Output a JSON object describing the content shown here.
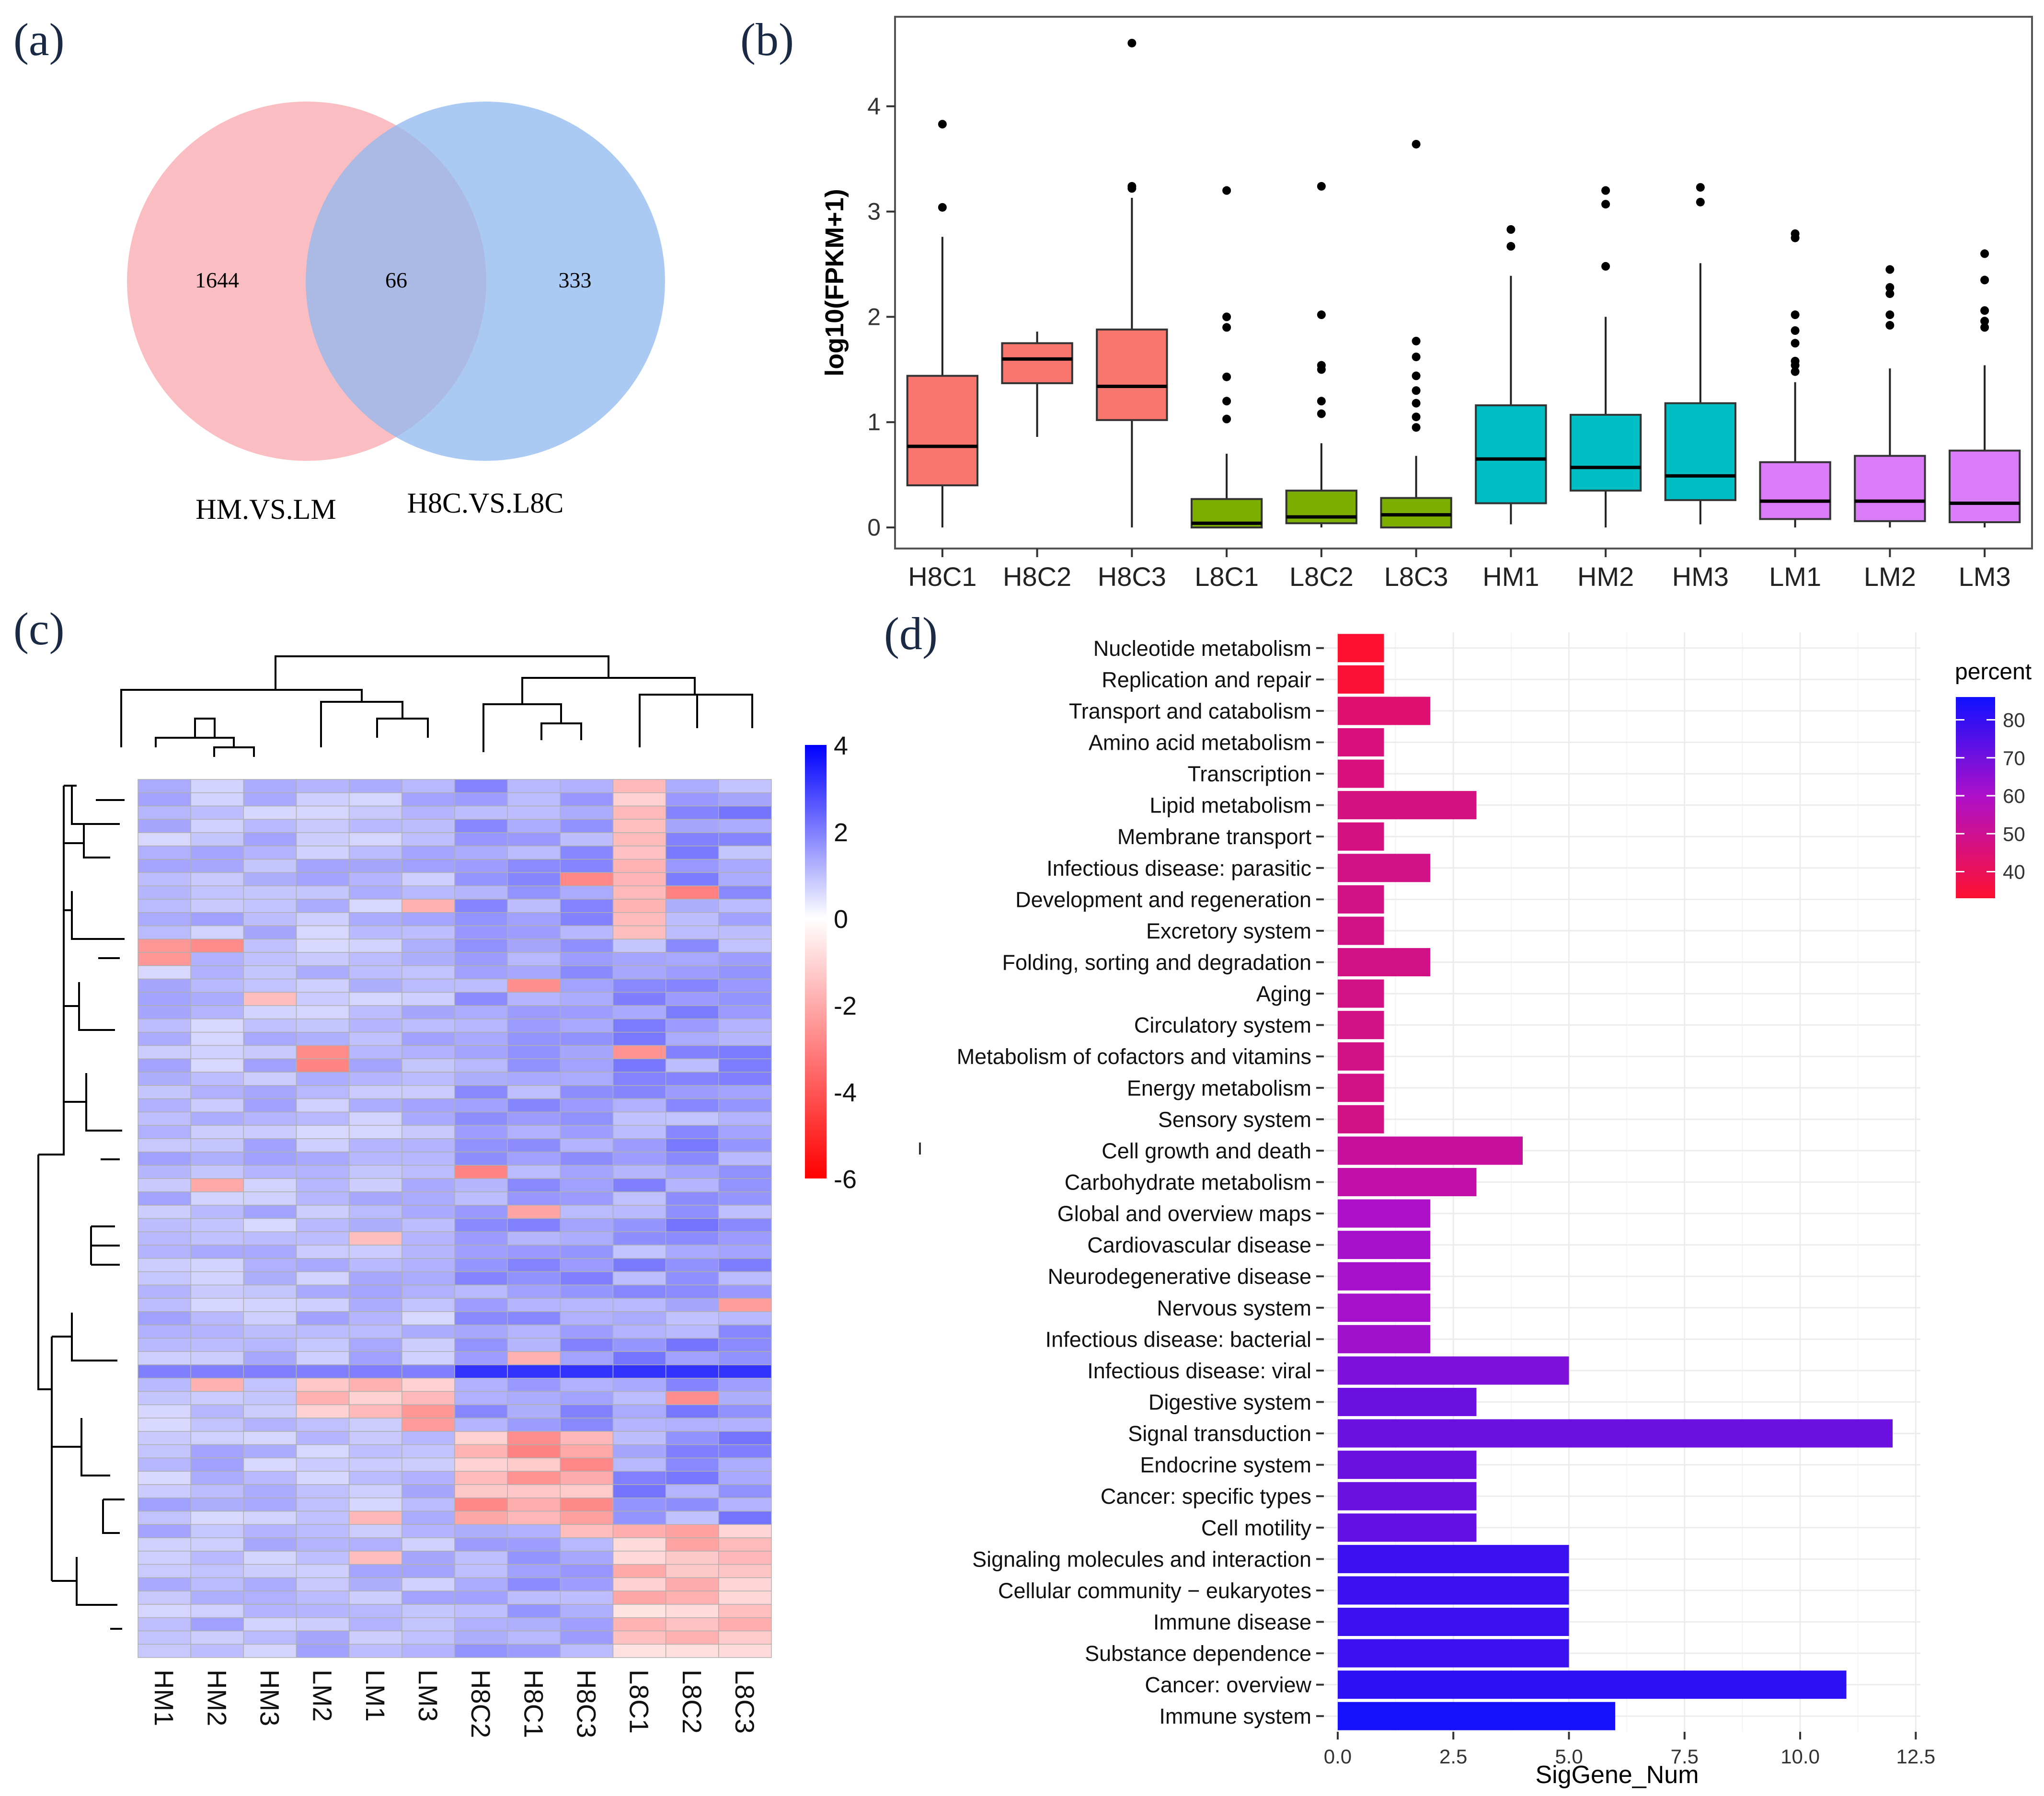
{
  "panels": {
    "a": "(a)",
    "b": "(b)",
    "c": "(c)",
    "d": "(d)"
  },
  "chart_data": [
    {
      "type": "venn",
      "panel": "(a)",
      "sets": [
        {
          "name": "HM.VS.LM",
          "color": "#f8a8ae"
        },
        {
          "name": "H8C.VS.L8C",
          "color": "#8fb8ef"
        }
      ],
      "regions": {
        "only_a": 1644,
        "intersection": 66,
        "only_b": 333
      }
    },
    {
      "type": "box",
      "panel": "(b)",
      "ylabel": "log10(FPKM+1)",
      "ylim": [
        -0.2,
        4.85
      ],
      "yticks": [
        0,
        1,
        2,
        3,
        4
      ],
      "groups": [
        {
          "name": "H8C1",
          "color": "#f8766d",
          "whisker_low": 0.0,
          "q1": 0.4,
          "median": 0.77,
          "q3": 1.44,
          "whisker_high": 2.76,
          "outliers": [
            3.04,
            3.83
          ]
        },
        {
          "name": "H8C2",
          "color": "#f8766d",
          "whisker_low": 0.86,
          "q1": 1.37,
          "median": 1.6,
          "q3": 1.75,
          "whisker_high": 1.86,
          "outliers": []
        },
        {
          "name": "H8C3",
          "color": "#f8766d",
          "whisker_low": 0.0,
          "q1": 1.02,
          "median": 1.34,
          "q3": 1.88,
          "whisker_high": 3.13,
          "outliers": [
            3.22,
            3.24,
            4.6
          ]
        },
        {
          "name": "L8C1",
          "color": "#7cae00",
          "whisker_low": 0.0,
          "q1": 0.0,
          "median": 0.04,
          "q3": 0.27,
          "whisker_high": 0.7,
          "outliers": [
            1.03,
            1.2,
            1.43,
            1.9,
            2.0,
            3.2
          ]
        },
        {
          "name": "L8C2",
          "color": "#7cae00",
          "whisker_low": 0.0,
          "q1": 0.04,
          "median": 0.1,
          "q3": 0.35,
          "whisker_high": 0.8,
          "outliers": [
            1.08,
            1.2,
            1.5,
            1.54,
            2.02,
            3.24
          ]
        },
        {
          "name": "L8C3",
          "color": "#7cae00",
          "whisker_low": 0.0,
          "q1": 0.0,
          "median": 0.12,
          "q3": 0.28,
          "whisker_high": 0.68,
          "outliers": [
            0.95,
            1.05,
            1.18,
            1.3,
            1.44,
            1.62,
            1.77,
            3.64
          ]
        },
        {
          "name": "HM1",
          "color": "#00bfc4",
          "whisker_low": 0.03,
          "q1": 0.23,
          "median": 0.65,
          "q3": 1.16,
          "whisker_high": 2.39,
          "outliers": [
            2.67,
            2.83
          ]
        },
        {
          "name": "HM2",
          "color": "#00bfc4",
          "whisker_low": 0.0,
          "q1": 0.35,
          "median": 0.57,
          "q3": 1.07,
          "whisker_high": 2.0,
          "outliers": [
            2.48,
            3.07,
            3.2
          ]
        },
        {
          "name": "HM3",
          "color": "#00bfc4",
          "whisker_low": 0.03,
          "q1": 0.26,
          "median": 0.49,
          "q3": 1.18,
          "whisker_high": 2.51,
          "outliers": [
            3.09,
            3.23
          ]
        },
        {
          "name": "LM1",
          "color": "#da7cf8",
          "whisker_low": 0.0,
          "q1": 0.08,
          "median": 0.25,
          "q3": 0.62,
          "whisker_high": 1.38,
          "outliers": [
            1.48,
            1.54,
            1.58,
            1.75,
            1.87,
            2.02,
            2.75,
            2.79
          ]
        },
        {
          "name": "LM2",
          "color": "#da7cf8",
          "whisker_low": 0.0,
          "q1": 0.06,
          "median": 0.25,
          "q3": 0.68,
          "whisker_high": 1.51,
          "outliers": [
            1.92,
            2.02,
            2.22,
            2.28,
            2.45
          ]
        },
        {
          "name": "LM3",
          "color": "#da7cf8",
          "whisker_low": 0.0,
          "q1": 0.05,
          "median": 0.23,
          "q3": 0.73,
          "whisker_high": 1.54,
          "outliers": [
            1.9,
            1.96,
            2.06,
            2.35,
            2.6
          ]
        }
      ]
    },
    {
      "type": "heatmap",
      "panel": "(c)",
      "columns": [
        "HM1",
        "HM2",
        "HM3",
        "LM2",
        "LM1",
        "LM3",
        "H8C2",
        "H8C1",
        "H8C3",
        "L8C1",
        "L8C2",
        "L8C3"
      ],
      "n_rows": 66,
      "colorbar": {
        "min": -6,
        "max": 4,
        "ticks": [
          4,
          2,
          0,
          -2,
          -4,
          -6
        ],
        "low_color": "#ff0000",
        "mid_color": "#ffffff",
        "high_color": "#0000ff"
      }
    },
    {
      "type": "bar",
      "orientation": "horizontal",
      "panel": "(d)",
      "xlabel": "SigGene_Num",
      "xlim": [
        -0.3,
        12.6
      ],
      "xticks": [
        0.0,
        2.5,
        5.0,
        7.5,
        10.0,
        12.5
      ],
      "xtick_labels": [
        "0.0",
        "2.5",
        "5.0",
        "7.5",
        "10.0",
        "12.5"
      ],
      "legend_title": "percent",
      "legend_range": [
        33,
        86
      ],
      "legend_ticks": [
        80,
        70,
        60,
        50,
        40
      ],
      "categories": [
        "Nucleotide metabolism",
        "Replication and repair",
        "Transport and catabolism",
        "Amino acid metabolism",
        "Transcription",
        "Lipid metabolism",
        "Membrane transport",
        "Infectious disease: parasitic",
        "Development and regeneration",
        "Excretory system",
        "Folding, sorting and degradation",
        "Aging",
        "Circulatory system",
        "Metabolism of cofactors and vitamins",
        "Energy metabolism",
        "Sensory system",
        "Cell growth and death",
        "Carbohydrate metabolism",
        "Global and overview maps",
        "Cardiovascular disease",
        "Neurodegenerative disease",
        "Nervous system",
        "Infectious disease: bacterial",
        "Infectious disease: viral",
        "Digestive system",
        "Signal transduction",
        "Endocrine system",
        "Cancer: specific types",
        "Cell motility",
        "Signaling molecules and interaction",
        "Cellular community − eukaryotes",
        "Immune disease",
        "Substance dependence",
        "Cancer: overview",
        "Immune system"
      ],
      "values": [
        1,
        1,
        2,
        1,
        1,
        3,
        1,
        2,
        1,
        1,
        2,
        1,
        1,
        1,
        1,
        1,
        4,
        3,
        2,
        2,
        2,
        2,
        2,
        5,
        3,
        12,
        3,
        3,
        3,
        5,
        5,
        5,
        5,
        11,
        6
      ],
      "percent": [
        33,
        34,
        44,
        46,
        46,
        47,
        47,
        48,
        48,
        48,
        48,
        48,
        48,
        48,
        48,
        48,
        52,
        54,
        60,
        61,
        61,
        61,
        62,
        68,
        71,
        71,
        71,
        71,
        72,
        79,
        79,
        79,
        79,
        81,
        85
      ]
    }
  ]
}
